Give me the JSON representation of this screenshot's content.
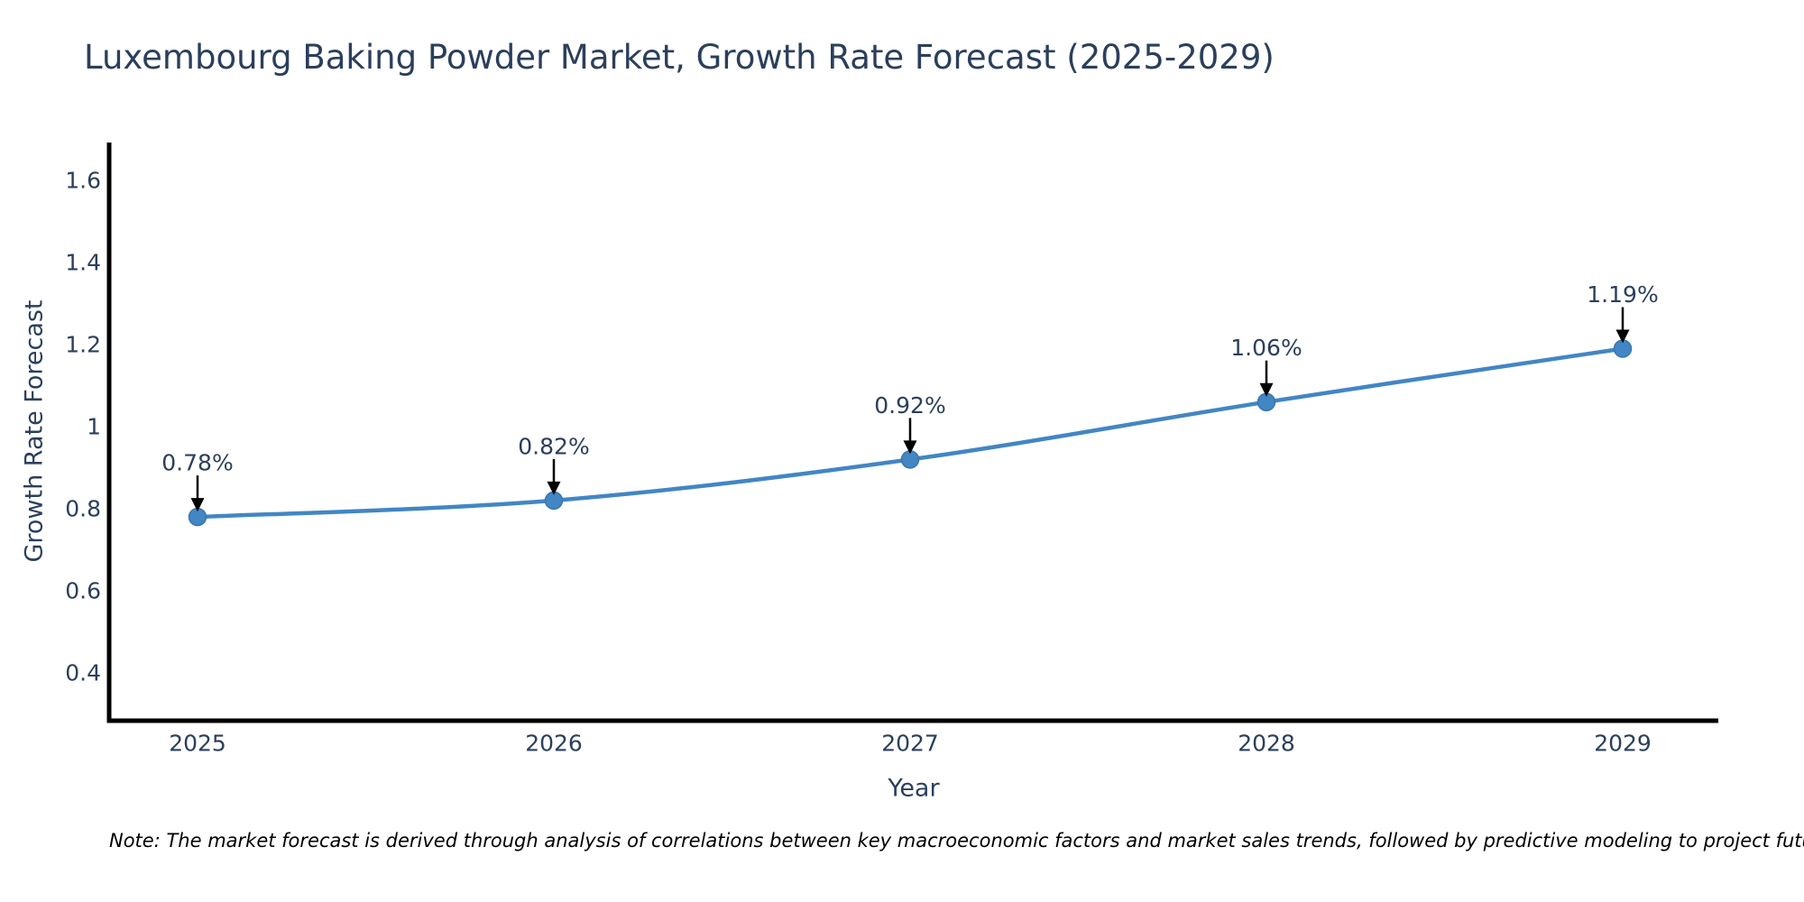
{
  "chart": {
    "title": "Luxembourg Baking Powder Market, Growth Rate Forecast (2025-2029)",
    "ylabel": "Growth Rate Forecast",
    "xlabel": "Year",
    "note": "Note: The market forecast is derived through analysis of correlations between key macroeconomic factors and market sales trends, followed by predictive modeling to project future sales"
  },
  "chart_data": {
    "type": "line",
    "title": "Luxembourg Baking Powder Market, Growth Rate Forecast (2025-2029)",
    "xlabel": "Year",
    "ylabel": "Growth Rate Forecast",
    "x": [
      2025,
      2026,
      2027,
      2028,
      2029
    ],
    "x_tick_labels": [
      "2025",
      "2026",
      "2027",
      "2028",
      "2029"
    ],
    "values": [
      0.78,
      0.82,
      0.92,
      1.06,
      1.19
    ],
    "point_labels": [
      "0.78%",
      "0.82%",
      "0.92%",
      "1.06%",
      "1.19%"
    ],
    "yticks": [
      1.6,
      1.4,
      1.2,
      1.0,
      0.8,
      0.6,
      0.4
    ],
    "ytick_labels": [
      "1.6",
      "1.4",
      "1.2",
      "1",
      "0.8",
      "0.6",
      "0.4"
    ],
    "ylim": [
      0.28,
      1.69
    ],
    "xlim": [
      2024.74,
      2029.27
    ],
    "grid": false,
    "legend": false,
    "line_shape": "spline",
    "colors": {
      "line": "#4286c4",
      "marker": "#4286c4",
      "marker_edge": "#3a76ad",
      "axis": "#000000",
      "text": "#2b3f5c",
      "annotation_arrow": "#000000",
      "note_text": "#000000",
      "background": "#ffffff"
    }
  }
}
